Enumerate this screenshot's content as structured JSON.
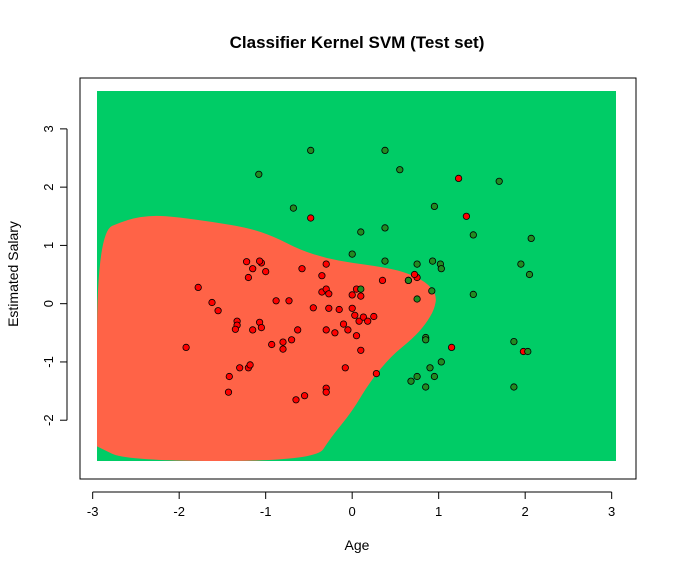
{
  "chart_data": {
    "type": "scatter",
    "title": "Classifier Kernel SVM (Test set)",
    "xlabel": "Age",
    "ylabel": "Estimated Salary",
    "xlim": [
      -2.95,
      3.05
    ],
    "ylim": [
      -2.7,
      3.65
    ],
    "xticks": [
      "-3",
      "-2",
      "-1",
      "0",
      "1",
      "2",
      "3"
    ],
    "yticks": [
      "-2",
      "-1",
      "0",
      "1",
      "2",
      "3"
    ],
    "colors": {
      "region_0": "#FF6347",
      "region_1": "#00CC66",
      "point_0": "#FF0000",
      "point_1": "#228B22",
      "point_edge": "#000000"
    },
    "decision_region_class0_outline": [
      [
        -2.95,
        -2.45
      ],
      [
        -2.95,
        1.22
      ],
      [
        -2.6,
        1.45
      ],
      [
        -2.3,
        1.52
      ],
      [
        -2.0,
        1.48
      ],
      [
        -1.6,
        1.4
      ],
      [
        -1.2,
        1.3
      ],
      [
        -0.9,
        1.15
      ],
      [
        -0.6,
        0.92
      ],
      [
        -0.3,
        0.78
      ],
      [
        0.0,
        0.7
      ],
      [
        0.3,
        0.64
      ],
      [
        0.6,
        0.55
      ],
      [
        0.85,
        0.38
      ],
      [
        0.98,
        0.15
      ],
      [
        0.95,
        -0.1
      ],
      [
        0.85,
        -0.35
      ],
      [
        0.7,
        -0.6
      ],
      [
        0.45,
        -0.9
      ],
      [
        0.2,
        -1.35
      ],
      [
        0.0,
        -1.85
      ],
      [
        -0.25,
        -2.3
      ],
      [
        -0.42,
        -2.7
      ],
      [
        -2.6,
        -2.7
      ],
      [
        -2.95,
        -2.45
      ]
    ],
    "series": [
      {
        "name": "",
        "class": 0,
        "points": [
          [
            -1.05,
            0.7
          ],
          [
            -1.07,
            0.73
          ],
          [
            -1.22,
            0.72
          ],
          [
            -1.15,
            0.6
          ],
          [
            -1.0,
            0.55
          ],
          [
            -1.2,
            0.45
          ],
          [
            -0.88,
            0.05
          ],
          [
            -0.73,
            0.05
          ],
          [
            -1.62,
            0.02
          ],
          [
            -1.55,
            -0.12
          ],
          [
            -1.33,
            -0.3
          ],
          [
            -1.33,
            -0.37
          ],
          [
            -1.15,
            -0.45
          ],
          [
            -1.07,
            -0.32
          ],
          [
            -1.05,
            -0.41
          ],
          [
            -0.93,
            -0.7
          ],
          [
            -0.8,
            -0.66
          ],
          [
            -0.8,
            -0.78
          ],
          [
            -0.7,
            -0.62
          ],
          [
            -0.63,
            -0.45
          ],
          [
            -0.58,
            0.6
          ],
          [
            -0.45,
            -0.07
          ],
          [
            -0.35,
            0.2
          ],
          [
            -0.3,
            0.25
          ],
          [
            -0.27,
            0.17
          ],
          [
            -0.3,
            0.68
          ],
          [
            -0.27,
            -0.08
          ],
          [
            -0.3,
            -0.45
          ],
          [
            -0.2,
            -0.5
          ],
          [
            -0.15,
            -0.1
          ],
          [
            -0.1,
            -0.35
          ],
          [
            -0.05,
            -0.45
          ],
          [
            0.0,
            0.15
          ],
          [
            0.0,
            -0.08
          ],
          [
            0.03,
            -0.2
          ],
          [
            0.08,
            -0.3
          ],
          [
            0.05,
            0.25
          ],
          [
            0.1,
            0.13
          ],
          [
            0.13,
            -0.23
          ],
          [
            0.18,
            -0.3
          ],
          [
            0.25,
            -0.22
          ],
          [
            0.05,
            -0.55
          ],
          [
            -0.35,
            0.48
          ],
          [
            0.1,
            -0.8
          ],
          [
            -0.08,
            -1.1
          ],
          [
            -0.3,
            -1.45
          ],
          [
            -0.3,
            -1.52
          ],
          [
            -0.55,
            -1.58
          ],
          [
            -0.65,
            -1.65
          ],
          [
            -1.2,
            -1.1
          ],
          [
            -1.18,
            -1.05
          ],
          [
            -1.3,
            -1.1
          ],
          [
            -1.42,
            -1.25
          ],
          [
            -1.43,
            -1.52
          ],
          [
            -1.92,
            -0.75
          ],
          [
            -1.35,
            -0.44
          ],
          [
            -1.78,
            0.28
          ],
          [
            -0.48,
            1.47
          ],
          [
            0.28,
            -1.2
          ],
          [
            0.35,
            0.4
          ],
          [
            0.65,
            0.4
          ],
          [
            0.75,
            0.45
          ],
          [
            0.72,
            0.5
          ],
          [
            1.23,
            2.15
          ],
          [
            1.32,
            1.5
          ],
          [
            1.15,
            -0.75
          ],
          [
            1.98,
            -0.82
          ]
        ]
      },
      {
        "name": "",
        "class": 1,
        "points": [
          [
            -0.48,
            2.63
          ],
          [
            -1.08,
            2.22
          ],
          [
            -0.68,
            1.64
          ],
          [
            0.38,
            2.63
          ],
          [
            0.55,
            2.3
          ],
          [
            0.95,
            1.67
          ],
          [
            1.7,
            2.1
          ],
          [
            0.38,
            1.3
          ],
          [
            0.1,
            1.23
          ],
          [
            1.4,
            1.18
          ],
          [
            2.07,
            1.12
          ],
          [
            0.75,
            0.68
          ],
          [
            0.93,
            0.73
          ],
          [
            1.02,
            0.68
          ],
          [
            1.03,
            0.6
          ],
          [
            1.95,
            0.68
          ],
          [
            2.05,
            0.5
          ],
          [
            0.38,
            0.73
          ],
          [
            0.0,
            0.85
          ],
          [
            0.1,
            0.25
          ],
          [
            0.65,
            0.4
          ],
          [
            0.92,
            0.22
          ],
          [
            1.4,
            0.16
          ],
          [
            0.75,
            0.08
          ],
          [
            0.85,
            -0.58
          ],
          [
            0.85,
            -0.62
          ],
          [
            0.9,
            -1.1
          ],
          [
            0.95,
            -1.25
          ],
          [
            1.03,
            -1.0
          ],
          [
            0.75,
            -1.25
          ],
          [
            0.68,
            -1.33
          ],
          [
            0.85,
            -1.43
          ],
          [
            1.87,
            -0.65
          ],
          [
            2.03,
            -0.82
          ],
          [
            1.87,
            -1.43
          ]
        ]
      }
    ]
  }
}
